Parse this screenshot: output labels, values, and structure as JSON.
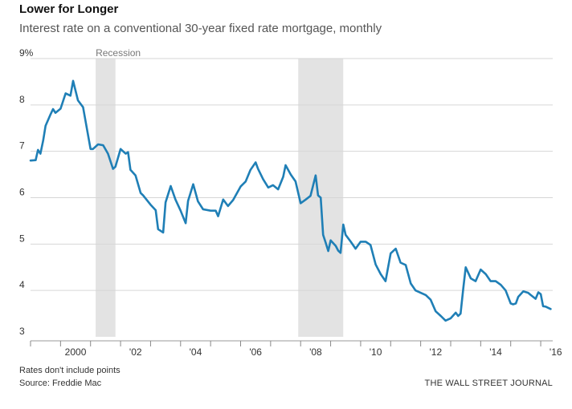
{
  "header": {
    "title": "Lower for Longer",
    "subtitle": "Interest rate on a conventional 30-year fixed rate mortgage, monthly"
  },
  "footer": {
    "note": "Rates don't include points",
    "source": "Source: Freddie Mac",
    "credit": "THE WALL STREET JOURNAL"
  },
  "chart_data": {
    "type": "line",
    "title": "Lower for Longer",
    "subtitle": "Interest rate on a conventional 30-year fixed rate mortgage, monthly",
    "xlabel": "",
    "ylabel": "",
    "xlim": [
      1999.0,
      2016.4
    ],
    "ylim": [
      3,
      9
    ],
    "y_ticks": [
      {
        "value": 9,
        "label": "9%"
      },
      {
        "value": 8,
        "label": "8"
      },
      {
        "value": 7,
        "label": "7"
      },
      {
        "value": 6,
        "label": "6"
      },
      {
        "value": 5,
        "label": "5"
      },
      {
        "value": 4,
        "label": "4"
      },
      {
        "value": 3,
        "label": "3"
      }
    ],
    "x_ticks": [
      {
        "value": 2000,
        "label": "2000"
      },
      {
        "value": 2002,
        "label": "'02"
      },
      {
        "value": 2004,
        "label": "'04"
      },
      {
        "value": 2006,
        "label": "'06"
      },
      {
        "value": 2008,
        "label": "'08"
      },
      {
        "value": 2010,
        "label": "'10"
      },
      {
        "value": 2012,
        "label": "'12"
      },
      {
        "value": 2014,
        "label": "'14"
      },
      {
        "value": 2016,
        "label": "'16"
      }
    ],
    "grid": "horizontal",
    "line_color": "#1f7fb6",
    "recession_color": "#e3e3e3",
    "recession_label": "Recession",
    "recessions": [
      {
        "start": 2001.17,
        "end": 2001.83
      },
      {
        "start": 2007.92,
        "end": 2009.42
      }
    ],
    "series": [
      {
        "x": [
          1999.0,
          1999.17,
          1999.25,
          1999.33,
          1999.42,
          1999.5,
          1999.67,
          1999.75,
          1999.83,
          2000.0,
          2000.17,
          2000.33,
          2000.42,
          2000.58,
          2000.75,
          2001.0,
          2001.08,
          2001.25,
          2001.42,
          2001.58,
          2001.75,
          2001.83,
          2002.0,
          2002.17,
          2002.25,
          2002.33,
          2002.5,
          2002.67,
          2002.75,
          2003.0,
          2003.17,
          2003.25,
          2003.42,
          2003.5,
          2003.67,
          2003.83,
          2004.0,
          2004.17,
          2004.25,
          2004.42,
          2004.58,
          2004.75,
          2005.0,
          2005.17,
          2005.25,
          2005.42,
          2005.58,
          2005.75,
          2006.0,
          2006.17,
          2006.33,
          2006.5,
          2006.58,
          2006.75,
          2006.92,
          2007.08,
          2007.25,
          2007.42,
          2007.5,
          2007.67,
          2007.83,
          2008.0,
          2008.17,
          2008.33,
          2008.5,
          2008.58,
          2008.67,
          2008.75,
          2008.83,
          2008.92,
          2009.0,
          2009.17,
          2009.25,
          2009.33,
          2009.42,
          2009.5,
          2009.67,
          2009.83,
          2010.0,
          2010.17,
          2010.33,
          2010.5,
          2010.67,
          2010.83,
          2011.0,
          2011.17,
          2011.33,
          2011.5,
          2011.67,
          2011.83,
          2012.0,
          2012.17,
          2012.33,
          2012.5,
          2012.67,
          2012.83,
          2013.0,
          2013.17,
          2013.25,
          2013.33,
          2013.42,
          2013.5,
          2013.67,
          2013.83,
          2014.0,
          2014.17,
          2014.33,
          2014.5,
          2014.67,
          2014.83,
          2015.0,
          2015.08,
          2015.17,
          2015.25,
          2015.42,
          2015.58,
          2015.67,
          2015.83,
          2015.92,
          2016.0,
          2016.08,
          2016.17,
          2016.33
        ],
        "y": [
          6.8,
          6.81,
          7.03,
          6.95,
          7.23,
          7.55,
          7.8,
          7.91,
          7.83,
          7.92,
          8.25,
          8.2,
          8.52,
          8.1,
          7.95,
          7.05,
          7.05,
          7.15,
          7.13,
          6.95,
          6.62,
          6.67,
          7.05,
          6.95,
          6.98,
          6.6,
          6.48,
          6.1,
          6.05,
          5.85,
          5.73,
          5.32,
          5.25,
          5.9,
          6.25,
          5.96,
          5.72,
          5.45,
          5.93,
          6.29,
          5.92,
          5.75,
          5.72,
          5.72,
          5.6,
          5.96,
          5.82,
          5.95,
          6.24,
          6.35,
          6.6,
          6.76,
          6.62,
          6.4,
          6.22,
          6.27,
          6.18,
          6.45,
          6.7,
          6.5,
          6.35,
          5.88,
          5.96,
          6.04,
          6.48,
          6.05,
          6.0,
          5.2,
          5.04,
          4.85,
          5.08,
          4.96,
          4.86,
          4.81,
          5.42,
          5.2,
          5.05,
          4.9,
          5.05,
          5.05,
          4.98,
          4.56,
          4.35,
          4.2,
          4.8,
          4.9,
          4.6,
          4.55,
          4.15,
          4.0,
          3.95,
          3.9,
          3.8,
          3.55,
          3.45,
          3.35,
          3.4,
          3.52,
          3.45,
          3.5,
          4.05,
          4.5,
          4.26,
          4.2,
          4.45,
          4.35,
          4.2,
          4.2,
          4.12,
          4.0,
          3.72,
          3.7,
          3.72,
          3.86,
          3.98,
          3.95,
          3.9,
          3.82,
          3.96,
          3.92,
          3.66,
          3.65,
          3.6
        ]
      }
    ]
  }
}
